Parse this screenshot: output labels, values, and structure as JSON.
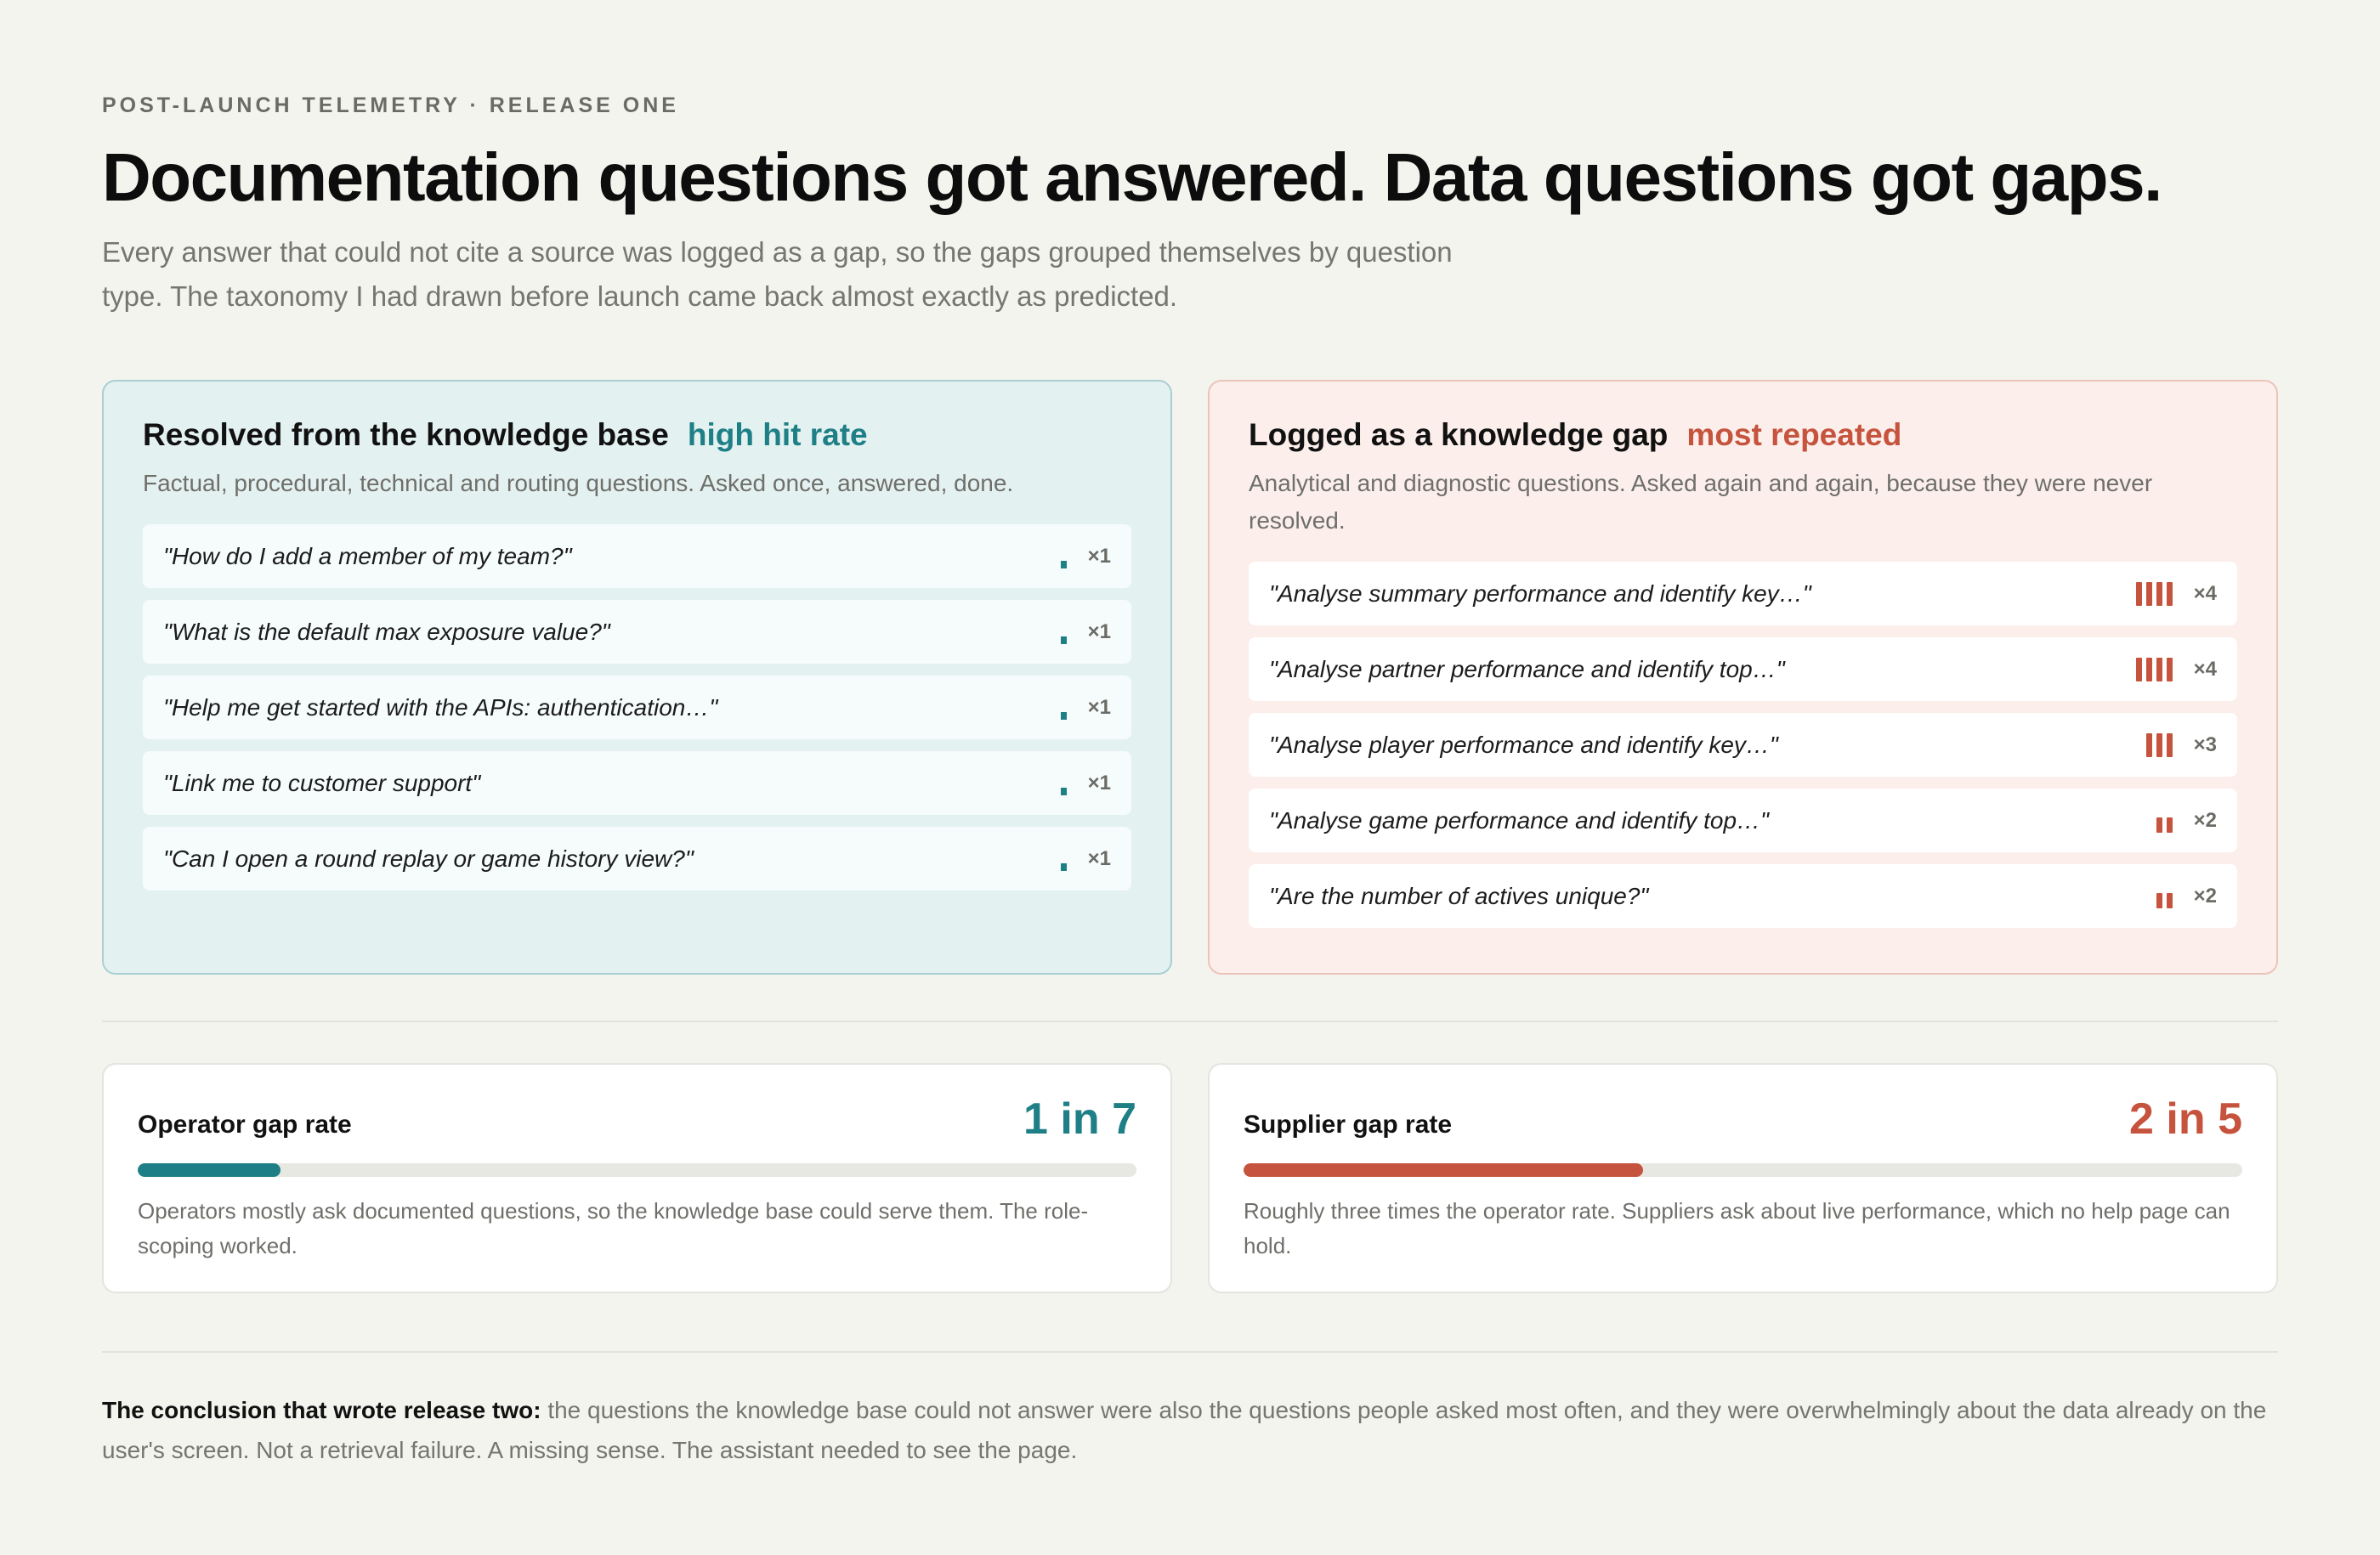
{
  "eyebrow": "POST-LAUNCH TELEMETRY · RELEASE ONE",
  "title": "Documentation questions got answered. Data questions got gaps.",
  "subtitle": "Every answer that could not cite a source was logged as a gap, so the gaps grouped themselves by question type. The taxonomy I had drawn before launch came back almost exactly as predicted.",
  "colors": {
    "teal": "#1e7f86",
    "rust": "#c5533d",
    "background": "#f4f4ef"
  },
  "resolved": {
    "title": "Resolved from the knowledge base",
    "tag": "high hit rate",
    "description": "Factual, procedural, technical and routing questions. Asked once, answered, done.",
    "questions": [
      {
        "text": "\"How do I add a member of my team?\"",
        "count": 1,
        "count_label": "×1"
      },
      {
        "text": "\"What is the default max exposure value?\"",
        "count": 1,
        "count_label": "×1"
      },
      {
        "text": "\"Help me get started with the APIs: authentication…\"",
        "count": 1,
        "count_label": "×1"
      },
      {
        "text": "\"Link me to customer support\"",
        "count": 1,
        "count_label": "×1"
      },
      {
        "text": "\"Can I open a round replay or game history view?\"",
        "count": 1,
        "count_label": "×1"
      }
    ]
  },
  "gap": {
    "title": "Logged as a knowledge gap",
    "tag": "most repeated",
    "description": "Analytical and diagnostic questions. Asked again and again, because they were never resolved.",
    "questions": [
      {
        "text": "\"Analyse summary performance and identify key…\"",
        "count": 4,
        "count_label": "×4"
      },
      {
        "text": "\"Analyse partner performance and identify top…\"",
        "count": 4,
        "count_label": "×4"
      },
      {
        "text": "\"Analyse player performance and identify key…\"",
        "count": 3,
        "count_label": "×3"
      },
      {
        "text": "\"Analyse game performance and identify top…\"",
        "count": 2,
        "count_label": "×2"
      },
      {
        "text": "\"Are the number of actives unique?\"",
        "count": 2,
        "count_label": "×2"
      }
    ]
  },
  "stats": {
    "operator": {
      "label": "Operator gap rate",
      "value": "1 in 7",
      "fraction": 0.142857,
      "description": "Operators mostly ask documented questions, so the knowledge base could serve them. The role-scoping worked."
    },
    "supplier": {
      "label": "Supplier gap rate",
      "value": "2 in 5",
      "fraction": 0.4,
      "description": "Roughly three times the operator rate. Suppliers ask about live performance, which no help page can hold."
    }
  },
  "conclusion": {
    "lead": "The conclusion that wrote release two:",
    "body": " the questions the knowledge base could not answer were also the questions people asked most often, and they were overwhelmingly about the data already on the user's screen. Not a retrieval failure. A missing sense. The assistant needed to see the page."
  }
}
